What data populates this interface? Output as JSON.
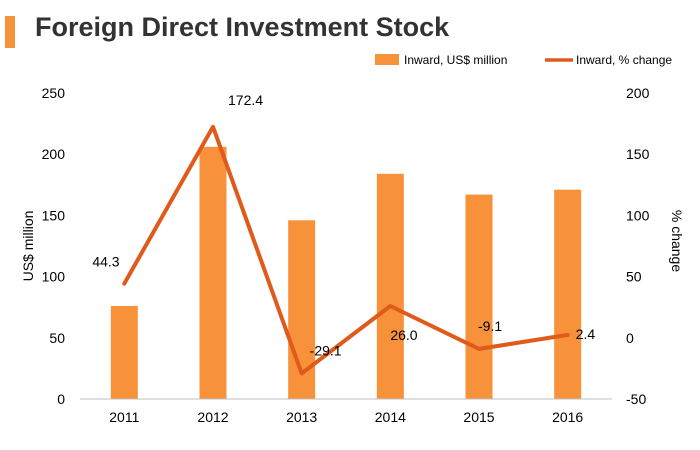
{
  "title": "Foreign Direct Investment Stock",
  "colors": {
    "bar": "#F7923A",
    "line": "#E05A1B",
    "accent": "#F7923A"
  },
  "chart_data": {
    "type": "bar",
    "categories": [
      "2011",
      "2012",
      "2013",
      "2014",
      "2015",
      "2016"
    ],
    "series": [
      {
        "name": "Inward, US$ million",
        "type": "bar",
        "axis": "left",
        "values": [
          76,
          206,
          146,
          184,
          167,
          171
        ]
      },
      {
        "name": "Inward, % change",
        "type": "line",
        "axis": "right",
        "values": [
          44.3,
          172.4,
          -29.1,
          26.0,
          -9.1,
          2.4
        ],
        "labels": [
          "44.3",
          "172.4",
          "-29.1",
          "26.0",
          "-9.1",
          "2.4"
        ]
      }
    ],
    "ylabel": "US$ million",
    "y2label": "% change",
    "ylim": [
      0,
      250
    ],
    "y2lim": [
      -50,
      200
    ],
    "yticks": [
      0,
      50,
      100,
      150,
      200,
      250
    ],
    "y2ticks": [
      -50,
      0,
      50,
      100,
      150,
      200
    ],
    "legend": "top-right",
    "grid": false
  }
}
